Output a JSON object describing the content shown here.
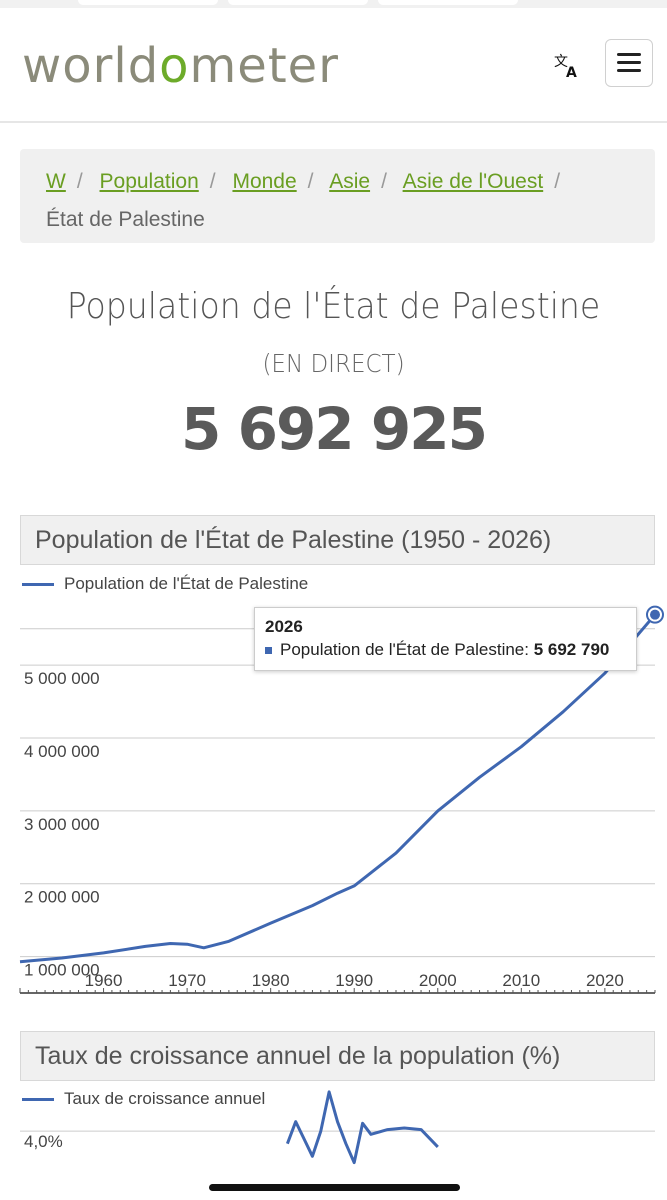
{
  "header": {
    "logo": {
      "part1": "world",
      "o": "o",
      "part2": "meter"
    },
    "icons": {
      "translate": "translate-icon",
      "menu": "hamburger-menu-icon"
    }
  },
  "breadcrumb": {
    "items": [
      "W",
      "Population",
      "Monde",
      "Asie",
      "Asie de l'Ouest"
    ],
    "current": "État de Palestine"
  },
  "page": {
    "title": "Population de l'État de Palestine",
    "live": "(EN DIRECT)",
    "counter": "5 692 925"
  },
  "colors": {
    "accent": "#6dab2a",
    "line": "#3f67b1",
    "grid": "#cccccc"
  },
  "chart_data": [
    {
      "type": "line",
      "title": "Population de l'État de Palestine (1950 - 2026)",
      "legend": "Population de l'État de Palestine",
      "legend_position": "top-left",
      "ylabels": [
        "5 000 000",
        "4 000 000",
        "3 000 000",
        "2 000 000",
        "1 000 000"
      ],
      "yticks": [
        5000000,
        4000000,
        3000000,
        2000000,
        1000000
      ],
      "xlabels": [
        "1960",
        "1970",
        "1980",
        "1990",
        "2000",
        "2010",
        "2020"
      ],
      "xticks": [
        1960,
        1970,
        1980,
        1990,
        2000,
        2010,
        2020
      ],
      "xlim": [
        1950,
        2026
      ],
      "ylim": [
        500000,
        6100000
      ],
      "grid": true,
      "x": [
        1950,
        1955,
        1960,
        1965,
        1968,
        1970,
        1972,
        1975,
        1980,
        1985,
        1988,
        1990,
        1992,
        1995,
        2000,
        2005,
        2010,
        2015,
        2020,
        2026
      ],
      "y": [
        930000,
        980000,
        1050000,
        1140000,
        1180000,
        1170000,
        1120000,
        1210000,
        1460000,
        1700000,
        1870000,
        1970000,
        2150000,
        2420000,
        3000000,
        3460000,
        3880000,
        4360000,
        4890000,
        5692790
      ],
      "tooltip": {
        "year": "2026",
        "label": "Population de l'État de Palestine:",
        "value": "5 692 790"
      }
    },
    {
      "type": "line",
      "title": "Taux de croissance annuel de la population (%)",
      "legend": "Taux de croissance annuel",
      "legend_position": "top-left",
      "ylabels": [
        "4,0%"
      ],
      "yticks": [
        4.0
      ],
      "grid": true,
      "x": [
        1982,
        1983,
        1984,
        1985,
        1986,
        1987,
        1988,
        1989,
        1990,
        1991,
        1992,
        1994,
        1996,
        1998,
        2000
      ],
      "y": [
        3.2,
        4.6,
        3.5,
        2.4,
        4.0,
        6.5,
        4.6,
        3.2,
        2.0,
        4.5,
        3.8,
        4.1,
        4.2,
        4.1,
        3.0
      ],
      "xlim": [
        1950,
        2026
      ],
      "ylim": [
        0,
        7
      ]
    }
  ]
}
